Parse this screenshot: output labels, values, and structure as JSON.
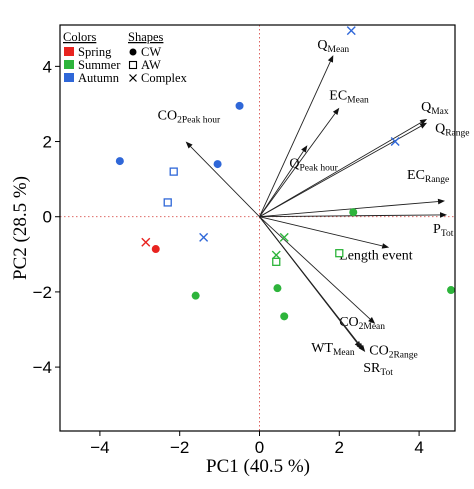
{
  "chart_data": {
    "type": "scatter",
    "xlabel": "PC1  (40.5 %)",
    "ylabel": "PC2  (28.5 %)",
    "xlim": [
      -5,
      4.9
    ],
    "ylim": [
      -5.7,
      5.1
    ],
    "xticks": [
      -4,
      -2,
      0,
      2,
      4
    ],
    "yticks": [
      -4,
      -2,
      0,
      2,
      4
    ],
    "xtick_labels": [
      "−4",
      "−2",
      "0",
      "2",
      "4"
    ],
    "ytick_labels": [
      "−4",
      "−2",
      "0",
      "2",
      "4"
    ],
    "reference_lines": {
      "x": 0,
      "y": 0,
      "color": "#d9534f",
      "style": "dotted"
    },
    "legend": {
      "colors_title": "Colors",
      "colors": [
        {
          "label": "Spring",
          "color": "#e8231f"
        },
        {
          "label": "Summer",
          "color": "#2db43b"
        },
        {
          "label": "Autumn",
          "color": "#2f67d8"
        }
      ],
      "shapes_title": "Shapes",
      "shapes": [
        {
          "label": "CW",
          "marker": "filled-circle"
        },
        {
          "label": "AW",
          "marker": "open-square"
        },
        {
          "label": "Complex",
          "marker": "x"
        }
      ]
    },
    "points": [
      {
        "season": "Spring",
        "shape": "x",
        "x": -2.85,
        "y": -0.68
      },
      {
        "season": "Spring",
        "shape": "circle",
        "x": -2.6,
        "y": -0.86
      },
      {
        "season": "Summer",
        "shape": "circle",
        "x": -1.6,
        "y": -2.1
      },
      {
        "season": "Summer",
        "shape": "circle",
        "x": 2.35,
        "y": 0.12
      },
      {
        "season": "Summer",
        "shape": "circle",
        "x": 0.45,
        "y": -1.9
      },
      {
        "season": "Summer",
        "shape": "circle",
        "x": 0.62,
        "y": -2.65
      },
      {
        "season": "Summer",
        "shape": "circle",
        "x": 4.8,
        "y": -1.95
      },
      {
        "season": "Summer",
        "shape": "square",
        "x": 2.0,
        "y": -0.97
      },
      {
        "season": "Summer",
        "shape": "square",
        "x": 0.42,
        "y": -1.2
      },
      {
        "season": "Summer",
        "shape": "x",
        "x": 0.62,
        "y": -0.55
      },
      {
        "season": "Summer",
        "shape": "x",
        "x": 0.42,
        "y": -1.02
      },
      {
        "season": "Autumn",
        "shape": "circle",
        "x": -3.5,
        "y": 1.48
      },
      {
        "season": "Autumn",
        "shape": "circle",
        "x": -1.05,
        "y": 1.4
      },
      {
        "season": "Autumn",
        "shape": "circle",
        "x": -0.5,
        "y": 2.95
      },
      {
        "season": "Autumn",
        "shape": "square",
        "x": -2.15,
        "y": 1.2
      },
      {
        "season": "Autumn",
        "shape": "square",
        "x": -2.3,
        "y": 0.38
      },
      {
        "season": "Autumn",
        "shape": "x",
        "x": -1.4,
        "y": -0.55
      },
      {
        "season": "Autumn",
        "shape": "x",
        "x": 2.3,
        "y": 4.95
      },
      {
        "season": "Autumn",
        "shape": "x",
        "x": 3.4,
        "y": 2.0
      }
    ],
    "loadings": [
      {
        "name": "Q",
        "sub": "Mean",
        "x": 1.85,
        "y": 4.3
      },
      {
        "name": "EC",
        "sub": "Mean",
        "x": 2.0,
        "y": 2.9
      },
      {
        "name": "Q",
        "sub": "Max",
        "x": 4.2,
        "y": 2.6
      },
      {
        "name": "Q",
        "sub": "Range",
        "x": 4.2,
        "y": 2.5
      },
      {
        "name": "Q",
        "sub": "Peak hour",
        "x": 1.2,
        "y": 1.9
      },
      {
        "name": "CO",
        "sub": "2Peak hour",
        "x": -1.85,
        "y": 2.0
      },
      {
        "name": "EC",
        "sub": "Range",
        "x": 4.65,
        "y": 0.42
      },
      {
        "name": "P",
        "sub": "Tot",
        "x": 4.7,
        "y": 0.05
      },
      {
        "name": "Length event",
        "sub": "",
        "x": 3.25,
        "y": -0.82
      },
      {
        "name": "CO",
        "sub": "2Mean",
        "x": 2.9,
        "y": -2.85
      },
      {
        "name": "CO",
        "sub": "2Range",
        "x": 2.55,
        "y": -3.5
      },
      {
        "name": "WT",
        "sub": "Mean",
        "x": 2.6,
        "y": -3.55
      },
      {
        "name": "SR",
        "sub": "Tot",
        "x": 2.65,
        "y": -3.6
      }
    ]
  }
}
